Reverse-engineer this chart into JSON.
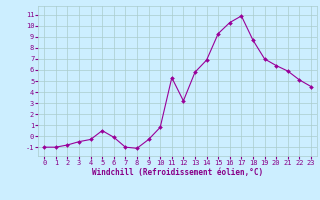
{
  "x": [
    0,
    1,
    2,
    3,
    4,
    5,
    6,
    7,
    8,
    9,
    10,
    11,
    12,
    13,
    14,
    15,
    16,
    17,
    18,
    19,
    20,
    21,
    22,
    23
  ],
  "y": [
    -1,
    -1,
    -0.8,
    -0.5,
    -0.3,
    0.5,
    -0.1,
    -1,
    -1.1,
    -0.3,
    0.8,
    5.3,
    3.2,
    5.8,
    6.9,
    9.3,
    10.3,
    10.9,
    8.7,
    7.0,
    6.4,
    5.9,
    5.1,
    4.5
  ],
  "line_color": "#990099",
  "marker": "D",
  "marker_size": 2.0,
  "bg_color": "#cceeff",
  "grid_color": "#aacccc",
  "xlabel": "Windchill (Refroidissement éolien,°C)",
  "xlim": [
    -0.5,
    23.5
  ],
  "ylim": [
    -1.8,
    11.8
  ],
  "yticks": [
    -1,
    0,
    1,
    2,
    3,
    4,
    5,
    6,
    7,
    8,
    9,
    10,
    11
  ],
  "xticks": [
    0,
    1,
    2,
    3,
    4,
    5,
    6,
    7,
    8,
    9,
    10,
    11,
    12,
    13,
    14,
    15,
    16,
    17,
    18,
    19,
    20,
    21,
    22,
    23
  ],
  "tick_color": "#880088",
  "label_color": "#880088",
  "tick_fontsize": 5.0,
  "xlabel_fontsize": 5.5
}
